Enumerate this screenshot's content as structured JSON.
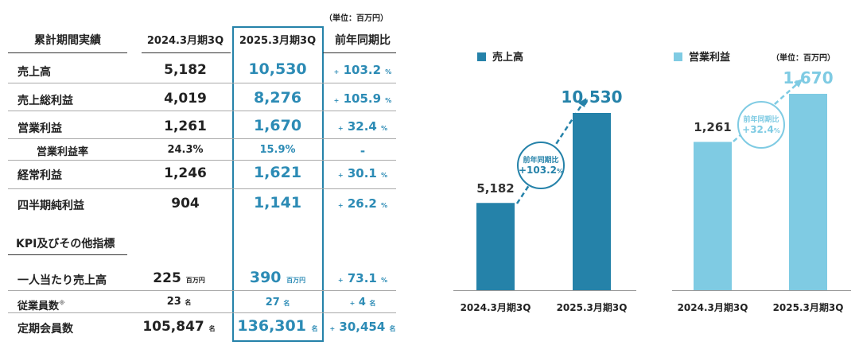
{
  "unit_note": "（単位：百万円）",
  "table": {
    "headers": [
      "累計期間実績",
      "2024.3月期3Q",
      "2025.3月期3Q",
      "前年同期比"
    ],
    "rows": [
      {
        "label": "売上高",
        "prev": "5,182",
        "curr": "10,530",
        "yoy": "103.2",
        "yoy_unit": "%"
      },
      {
        "label": "売上総利益",
        "prev": "4,019",
        "curr": "8,276",
        "yoy": "105.9",
        "yoy_unit": "%"
      },
      {
        "label": "営業利益",
        "prev": "1,261",
        "curr": "1,670",
        "yoy": "32.4",
        "yoy_unit": "%"
      },
      {
        "label": "営業利益率",
        "prev": "24.3%",
        "curr": "15.9%",
        "yoy": "-"
      },
      {
        "label": "経常利益",
        "prev": "1,246",
        "curr": "1,621",
        "yoy": "30.1",
        "yoy_unit": "%"
      },
      {
        "label": "四半期純利益",
        "prev": "904",
        "curr": "1,141",
        "yoy": "26.2",
        "yoy_unit": "%"
      }
    ],
    "kpi_heading": "KPI及びその他指標",
    "kpi_rows": [
      {
        "label": "一人当たり売上高",
        "prev": "225",
        "curr": "390",
        "unit": "百万円",
        "yoy": "73.1",
        "yoy_unit": "%"
      },
      {
        "label": "従業員数",
        "note": "※",
        "prev": "23",
        "curr": "27",
        "unit": "名",
        "yoy": "4",
        "yoy_unit": "名"
      },
      {
        "label": "定期会員数",
        "prev": "105,847",
        "curr": "136,301",
        "unit": "名",
        "yoy": "30,454",
        "yoy_unit": "名"
      }
    ],
    "plus": "+"
  },
  "chart_data": [
    {
      "type": "bar",
      "legend": "売上高",
      "color": "#2582a9",
      "categories": [
        "2024.3月期3Q",
        "2025.3月期3Q"
      ],
      "values": [
        5182,
        10530
      ],
      "labels": [
        "5,182",
        "10,530"
      ],
      "annotation": {
        "title": "前年同期比",
        "value": "+103.2",
        "unit": "%"
      }
    },
    {
      "type": "bar",
      "legend": "営業利益",
      "color": "#7fcbe3",
      "unit_note": "（単位：百万円）",
      "categories": [
        "2024.3月期3Q",
        "2025.3月期3Q"
      ],
      "values": [
        1261,
        1670
      ],
      "labels": [
        "1,261",
        "1,670"
      ],
      "annotation": {
        "title": "前年同期比",
        "value": "+32.4",
        "unit": "%"
      }
    }
  ]
}
